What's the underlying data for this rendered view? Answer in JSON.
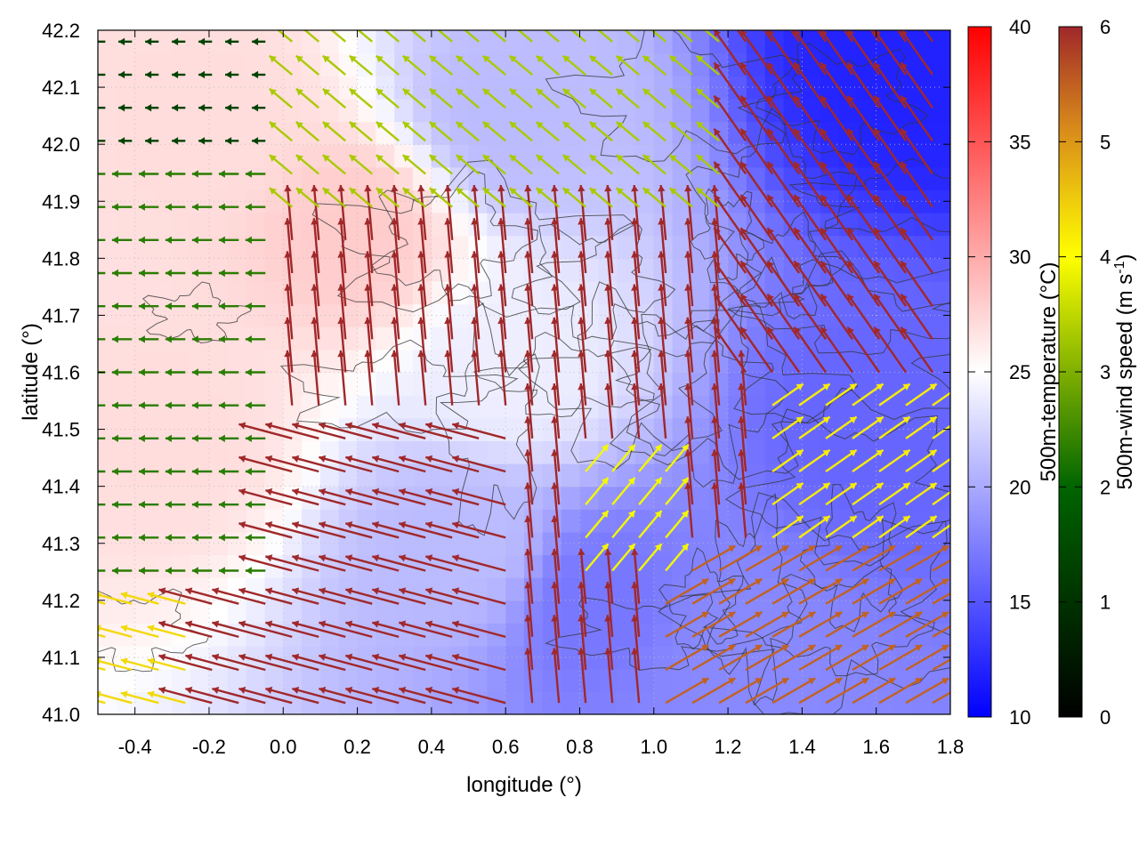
{
  "chart_data": {
    "type": "heatmap",
    "subtype": "vector-field-over-color-map-with-contours",
    "title": "",
    "xlabel": "longitude (°)",
    "ylabel": "latitude (°)",
    "xlim": [
      -0.5,
      1.8
    ],
    "ylim": [
      41.0,
      42.2
    ],
    "x_ticks": [
      "-0.4",
      "-0.2",
      "0.0",
      "0.2",
      "0.4",
      "0.6",
      "0.8",
      "1.0",
      "1.2",
      "1.4",
      "1.6",
      "1.8"
    ],
    "y_ticks": [
      "41.0",
      "41.1",
      "41.2",
      "41.3",
      "41.4",
      "41.5",
      "41.6",
      "41.7",
      "41.8",
      "41.9",
      "42.0",
      "42.1",
      "42.2"
    ],
    "grid": true,
    "colorbars": [
      {
        "name": "temperature",
        "label": "500m-temperature (°C)",
        "range": [
          10,
          40
        ],
        "ticks": [
          "10",
          "15",
          "20",
          "25",
          "30",
          "35",
          "40"
        ],
        "colors": [
          "#0000ff",
          "#ffffff",
          "#ff0000"
        ],
        "placement": "right"
      },
      {
        "name": "wind",
        "label_main": "500m-wind speed (m s",
        "label_sup": "-1",
        "label_end": ")",
        "range": [
          0,
          6
        ],
        "ticks": [
          "0",
          "1",
          "2",
          "3",
          "4",
          "5",
          "6"
        ],
        "colors": [
          "#000000",
          "#006400",
          "#7fb000",
          "#ffff00",
          "#d98c1a",
          "#a0282a"
        ],
        "placement": "far-right"
      }
    ],
    "temperature_field_approx": [
      {
        "lon": -0.3,
        "lat": 41.5,
        "t": 27
      },
      {
        "lon": 0.2,
        "lat": 41.85,
        "t": 28
      },
      {
        "lon": -0.2,
        "lat": 42.05,
        "t": 27
      },
      {
        "lon": 0.6,
        "lat": 42.05,
        "t": 21
      },
      {
        "lon": 1.7,
        "lat": 42.15,
        "t": 12
      },
      {
        "lon": 1.6,
        "lat": 41.5,
        "t": 16
      },
      {
        "lon": 1.2,
        "lat": 41.1,
        "t": 18
      },
      {
        "lon": 0.85,
        "lat": 41.2,
        "t": 17
      },
      {
        "lon": 0.5,
        "lat": 41.3,
        "t": 21
      },
      {
        "lon": 0.6,
        "lat": 41.6,
        "t": 24
      }
    ],
    "wind_regimes": [
      {
        "region": "west lon -0.5..0.0, lat 41.2..42.0",
        "direction": "westward",
        "speed": 1.5
      },
      {
        "region": "north lon 0.0..1.2, lat 41.85..42.2",
        "direction": "north-westward",
        "speed": 2.8
      },
      {
        "region": "southwest lon -0.2..0.6, lat 41.0..41.5",
        "direction": "west-north-westward",
        "speed": 6
      },
      {
        "region": "center lon 0.4..1.0, lat 41.3..41.8",
        "direction": "northward",
        "speed": 6
      },
      {
        "region": "east lon 1.2..1.8, lat 41.6..42.0",
        "direction": "north-westward",
        "speed": 6
      },
      {
        "region": "southeast lon 1.0..1.8, lat 41.0..41.3",
        "direction": "north-eastward",
        "speed": 5.3
      },
      {
        "region": "around lon 0.9, lat 41.35",
        "direction": "north-eastward",
        "speed": 3.5
      }
    ]
  }
}
